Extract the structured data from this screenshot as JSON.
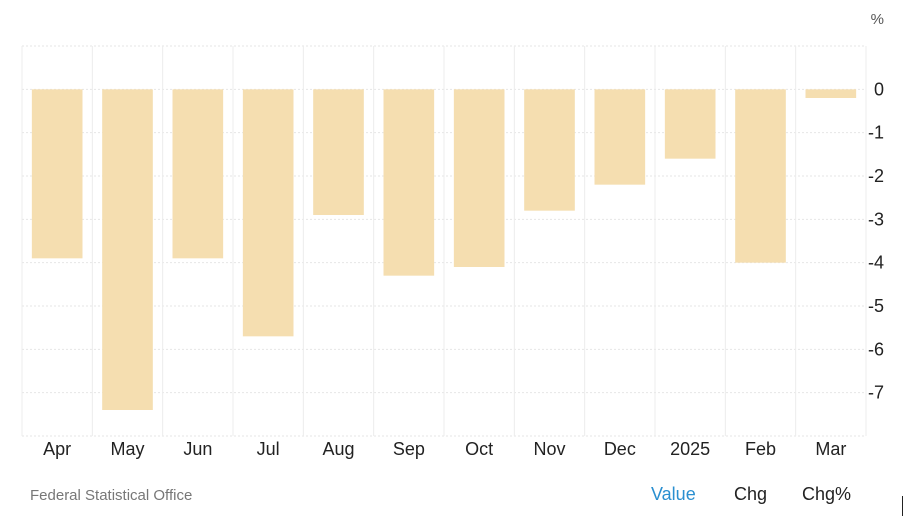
{
  "chart_data": {
    "type": "bar",
    "unit_label": "%",
    "categories": [
      "Apr",
      "May",
      "Jun",
      "Jul",
      "Aug",
      "Sep",
      "Oct",
      "Nov",
      "Dec",
      "2025",
      "Feb",
      "Mar"
    ],
    "values": [
      -3.9,
      -7.4,
      -3.9,
      -5.7,
      -2.9,
      -4.3,
      -4.1,
      -2.8,
      -2.2,
      -1.6,
      -4.0,
      -0.2
    ],
    "ylim": [
      -8,
      1
    ],
    "yticks": [
      0,
      -1,
      -2,
      -3,
      -4,
      -5,
      -6,
      -7
    ],
    "grid": true,
    "bar_color": "#f5deb0"
  },
  "footer": {
    "source": "Federal Statistical Office",
    "tabs": [
      "Value",
      "Chg",
      "Chg%"
    ],
    "active_tab": "Value",
    "active_color": "#2a8fd0"
  }
}
